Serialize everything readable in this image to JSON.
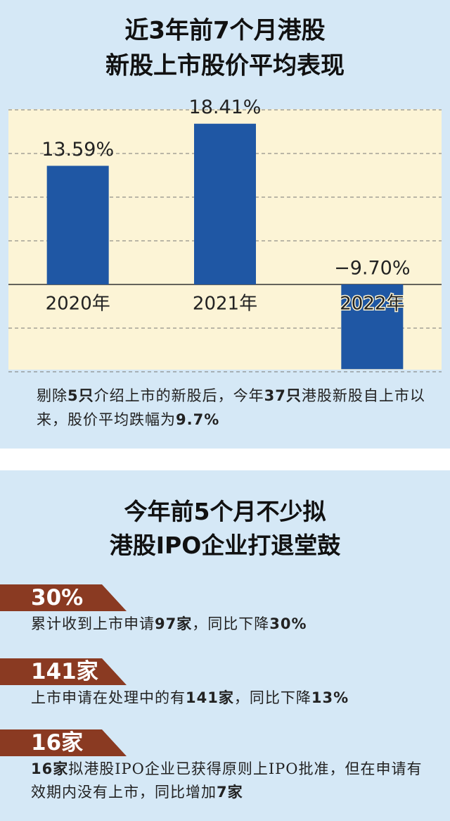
{
  "chart_data": {
    "type": "bar",
    "title": [
      "近3年前7个月港股",
      "新股上市股价平均表现"
    ],
    "categories": [
      "2020年",
      "2021年",
      "2022年"
    ],
    "values": [
      13.59,
      18.41,
      -9.7
    ],
    "value_labels": [
      "13.59%",
      "18.41%",
      "−9.70%"
    ],
    "color": "#1f57a4",
    "ylim": [
      -10,
      20
    ],
    "yticks": [
      -10,
      -5,
      0,
      5,
      10,
      15,
      20
    ],
    "grid": true
  },
  "note": [
    {
      "text": "剔除"
    },
    {
      "text": "5只",
      "bold": true
    },
    {
      "text": "介绍上市的新股后，今年"
    },
    {
      "text": "37只",
      "bold": true
    },
    {
      "text": "港股新股自上市以来，股价平均跌幅为"
    },
    {
      "text": "9.7%",
      "bold": true
    }
  ],
  "section": {
    "title": [
      "今年前5个月不少拟",
      "港股IPO企业打退堂鼓"
    ],
    "items": [
      {
        "tag": "30%",
        "text": [
          {
            "text": "累计收到上市申请"
          },
          {
            "text": "97家",
            "bold": true
          },
          {
            "text": "，同比下降"
          },
          {
            "text": "30%",
            "bold": true
          }
        ]
      },
      {
        "tag": "141家",
        "text": [
          {
            "text": "上市申请在处理中的有"
          },
          {
            "text": "141家",
            "bold": true
          },
          {
            "text": "，同比下降"
          },
          {
            "text": "13%",
            "bold": true
          }
        ]
      },
      {
        "tag": "16家",
        "text": [
          {
            "text": "16家",
            "bold": true
          },
          {
            "text": "拟港股IPO企业已获得原则上IPO批准，但在申请有效期内没有上市，同比增加"
          },
          {
            "text": "7家",
            "bold": true
          }
        ]
      }
    ]
  }
}
